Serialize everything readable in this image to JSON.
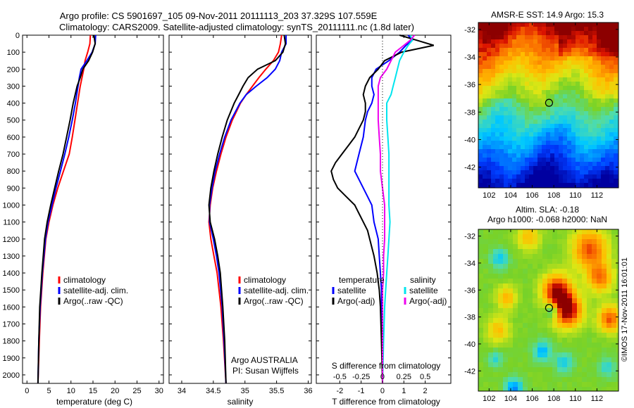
{
  "header": {
    "line1": "Argo profile: CS 5901697_105 09-Nov-2011 20111113_203 37.329S 107.559E",
    "line2": "Climatology: CARS2009. Satellite-adjusted climatology: synTS_20111111.nc (1.8d later)"
  },
  "colors": {
    "climatology": "#ff0000",
    "satellite": "#0000ff",
    "argo": "#000000",
    "satellite_s": "#00e5ee",
    "argo_s": "#ee00ee"
  },
  "chart_data": [
    {
      "type": "line",
      "id": "temperature",
      "xlabel": "temperature (deg C)",
      "ylabel": "",
      "xlim": [
        -1,
        31
      ],
      "ylim": [
        2050,
        0
      ],
      "xticks": [
        0,
        5,
        10,
        15,
        20,
        25,
        30
      ],
      "yticks": [
        0,
        100,
        200,
        300,
        400,
        500,
        600,
        700,
        800,
        900,
        1000,
        1100,
        1200,
        1300,
        1400,
        1500,
        1600,
        1700,
        1800,
        1900,
        2000
      ],
      "legend": [
        "climatology",
        "satellite-adj. clim.",
        "Argo(..raw -QC)"
      ],
      "legend_position": "lower-middle",
      "series": [
        {
          "name": "climatology",
          "color": "#ff0000",
          "depth": [
            0,
            50,
            100,
            150,
            200,
            250,
            300,
            400,
            500,
            600,
            700,
            800,
            900,
            1000,
            1100,
            1200,
            1400,
            1600,
            1800,
            2050
          ],
          "values": [
            14.4,
            14.3,
            13.8,
            13.2,
            12.9,
            12.5,
            12.1,
            11.5,
            10.9,
            10.3,
            9.6,
            8.3,
            7.0,
            5.9,
            5.0,
            4.3,
            3.6,
            3.1,
            2.8,
            2.5
          ]
        },
        {
          "name": "satellite-adj. clim.",
          "color": "#0000ff",
          "depth": [
            0,
            50,
            100,
            150,
            200,
            250,
            300,
            400,
            500,
            600,
            700,
            800,
            900,
            1000,
            1100,
            1200,
            1400,
            1600,
            1800,
            2050
          ],
          "values": [
            15.6,
            15.5,
            14.8,
            13.6,
            12.3,
            11.9,
            11.6,
            11.0,
            10.3,
            9.5,
            8.6,
            7.6,
            6.6,
            5.7,
            4.8,
            4.2,
            3.5,
            3.0,
            2.7,
            2.5
          ]
        },
        {
          "name": "Argo(..raw -QC)",
          "color": "#000000",
          "depth": [
            0,
            50,
            100,
            150,
            200,
            250,
            300,
            400,
            500,
            600,
            700,
            800,
            900,
            1000,
            1100,
            1200,
            1400,
            1600,
            1800,
            2050
          ],
          "values": [
            15.2,
            15.5,
            14.9,
            14.0,
            12.7,
            12.1,
            11.4,
            10.5,
            9.8,
            9.0,
            8.2,
            7.2,
            6.3,
            5.4,
            4.6,
            4.0,
            3.4,
            2.9,
            2.7,
            2.5
          ]
        }
      ]
    },
    {
      "type": "line",
      "id": "salinity",
      "xlabel": "salinity",
      "ylabel": "",
      "xlim": [
        33.8,
        36.05
      ],
      "ylim": [
        2050,
        0
      ],
      "xticks": [
        34,
        34.5,
        35,
        35.5,
        36
      ],
      "legend": [
        "climatology",
        "satellite-adj. clim.",
        "Argo(..raw -QC)"
      ],
      "legend_position": "lower-middle",
      "annotations": [
        "Argo AUSTRALIA",
        "PI: Susan Wijffels"
      ],
      "series": [
        {
          "name": "climatology",
          "color": "#ff0000",
          "depth": [
            0,
            50,
            100,
            150,
            200,
            250,
            300,
            350,
            400,
            500,
            600,
            700,
            800,
            900,
            1000,
            1100,
            1200,
            1300,
            1400,
            1600,
            1800,
            2050
          ],
          "values": [
            35.58,
            35.56,
            35.53,
            35.45,
            35.33,
            35.22,
            35.12,
            35.02,
            34.93,
            34.8,
            34.7,
            34.62,
            34.55,
            34.49,
            34.45,
            34.43,
            34.46,
            34.51,
            34.56,
            34.62,
            34.66,
            34.7
          ]
        },
        {
          "name": "satellite-adj. clim.",
          "color": "#0000ff",
          "depth": [
            0,
            50,
            100,
            150,
            200,
            250,
            300,
            350,
            400,
            500,
            600,
            700,
            800,
            900,
            1000,
            1100,
            1200,
            1300,
            1400,
            1600,
            1800,
            2050
          ],
          "values": [
            35.65,
            35.65,
            35.58,
            35.55,
            35.48,
            35.35,
            35.18,
            35.02,
            34.92,
            34.78,
            34.68,
            34.6,
            34.53,
            34.48,
            34.44,
            34.44,
            34.5,
            34.55,
            34.59,
            34.64,
            34.67,
            34.7
          ]
        },
        {
          "name": "Argo(..raw -QC)",
          "color": "#000000",
          "depth": [
            0,
            50,
            100,
            150,
            200,
            250,
            300,
            350,
            400,
            500,
            600,
            700,
            800,
            900,
            1000,
            1100,
            1200,
            1300,
            1400,
            1600,
            1800,
            2050
          ],
          "values": [
            35.62,
            35.64,
            35.6,
            35.48,
            35.2,
            35.05,
            34.97,
            34.9,
            34.83,
            34.72,
            34.64,
            34.57,
            34.51,
            34.46,
            34.43,
            34.45,
            34.52,
            34.57,
            34.61,
            34.65,
            34.68,
            34.7
          ]
        }
      ]
    },
    {
      "type": "line",
      "id": "differences",
      "xlabel": "T difference from climatology",
      "xlabel_top": "S difference from climatology",
      "xlim": [
        -3.1,
        3.2
      ],
      "ylim": [
        2050,
        0
      ],
      "xticks_t": [
        -2,
        -1,
        0,
        1,
        2
      ],
      "xticks_s": [
        -0.5,
        -0.25,
        0,
        0.25,
        0.5
      ],
      "legend_temperature_title": "temperature",
      "legend_salinity_title": "salinity",
      "legend_temperature": [
        "satellite",
        "Argo(-adj)"
      ],
      "legend_salinity": [
        "satellite",
        "Argo(-adj)"
      ],
      "series": [
        {
          "name": "satellite",
          "group": "temperature",
          "color": "#0000ff",
          "depth": [
            0,
            30,
            60,
            100,
            150,
            200,
            250,
            300,
            350,
            400,
            450,
            500,
            600,
            700,
            750,
            800,
            850,
            900,
            950,
            1000,
            1100,
            1200,
            1300,
            1400,
            1500,
            1600,
            1800,
            2050
          ],
          "values": [
            1.2,
            1.4,
            1.1,
            0.8,
            0.3,
            -0.3,
            -0.5,
            -0.5,
            -0.4,
            -0.5,
            -0.7,
            -0.8,
            -0.9,
            -1.1,
            -1.2,
            -1.3,
            -1.1,
            -0.9,
            -0.7,
            -0.5,
            -0.4,
            -0.2,
            -0.15,
            -0.1,
            -0.05,
            -0.05,
            0,
            0
          ]
        },
        {
          "name": "Argo(-adj)",
          "group": "temperature",
          "color": "#000000",
          "depth": [
            0,
            30,
            60,
            100,
            150,
            200,
            250,
            300,
            350,
            400,
            450,
            500,
            550,
            600,
            650,
            700,
            750,
            800,
            850,
            900,
            950,
            1000,
            1050,
            1100,
            1150,
            1200,
            1300,
            1400,
            1500,
            1600,
            1800,
            2050
          ],
          "values": [
            0.8,
            1.6,
            2.4,
            0.9,
            0.1,
            -0.2,
            -0.6,
            -0.8,
            -0.9,
            -0.8,
            -0.8,
            -0.9,
            -1.1,
            -1.3,
            -1.6,
            -1.9,
            -2.2,
            -2.4,
            -2.3,
            -2.1,
            -1.7,
            -1.3,
            -1.1,
            -0.9,
            -0.7,
            -0.6,
            -0.4,
            -0.25,
            -0.15,
            -0.1,
            -0.05,
            0
          ]
        },
        {
          "name": "satellite",
          "group": "salinity",
          "color": "#00e5ee",
          "depth": [
            0,
            30,
            60,
            100,
            150,
            200,
            250,
            300,
            350,
            400,
            500,
            600,
            700,
            800,
            900,
            1000,
            1100,
            1200,
            1300,
            1400,
            1500,
            1600,
            1800,
            2050
          ],
          "values": [
            1.3,
            1.4,
            1.2,
            1.0,
            0.8,
            0.7,
            0.6,
            0.5,
            0.4,
            0.2,
            0.2,
            0.25,
            0.3,
            0.3,
            0.3,
            0.3,
            0.35,
            0.3,
            0.25,
            0.2,
            0.15,
            0.1,
            0.05,
            0
          ]
        },
        {
          "name": "Argo(-adj)",
          "group": "salinity",
          "color": "#ee00ee",
          "depth": [
            0,
            30,
            60,
            100,
            150,
            200,
            250,
            300,
            400,
            500,
            600,
            700,
            800,
            900,
            1000,
            1100,
            1200,
            1300,
            1400,
            1500,
            1600,
            1800,
            2050
          ],
          "values": [
            1.5,
            1.3,
            1.0,
            0.6,
            0.4,
            0.2,
            -0.1,
            -0.2,
            -0.2,
            -0.2,
            -0.15,
            -0.1,
            -0.1,
            0,
            0.1,
            0.1,
            0.1,
            0.05,
            0.05,
            0,
            0,
            0,
            0
          ]
        }
      ]
    },
    {
      "type": "heatmap",
      "id": "sst_map",
      "title": "AMSR-E SST: 14.9 Argo: 15.3",
      "xlim": [
        101,
        114
      ],
      "ylim": [
        -43.5,
        -31.5
      ],
      "xticks": [
        102,
        104,
        106,
        108,
        110,
        112
      ],
      "yticks": [
        -32,
        -34,
        -36,
        -38,
        -40,
        -42
      ],
      "marker": {
        "lon": 107.559,
        "lat": -37.329
      }
    },
    {
      "type": "heatmap",
      "id": "sla_map",
      "title_line1": "Altim. SLA: -0.18",
      "title_line2": "Argo h1000: -0.068 h2000: NaN",
      "xlim": [
        101,
        114
      ],
      "ylim": [
        -43.5,
        -31.5
      ],
      "xticks": [
        102,
        104,
        106,
        108,
        110,
        112
      ],
      "yticks": [
        -32,
        -34,
        -36,
        -38,
        -40,
        -42
      ],
      "marker": {
        "lon": 107.559,
        "lat": -37.329
      }
    }
  ],
  "credit": "©IMOS 17-Nov-2011 16:01:01"
}
